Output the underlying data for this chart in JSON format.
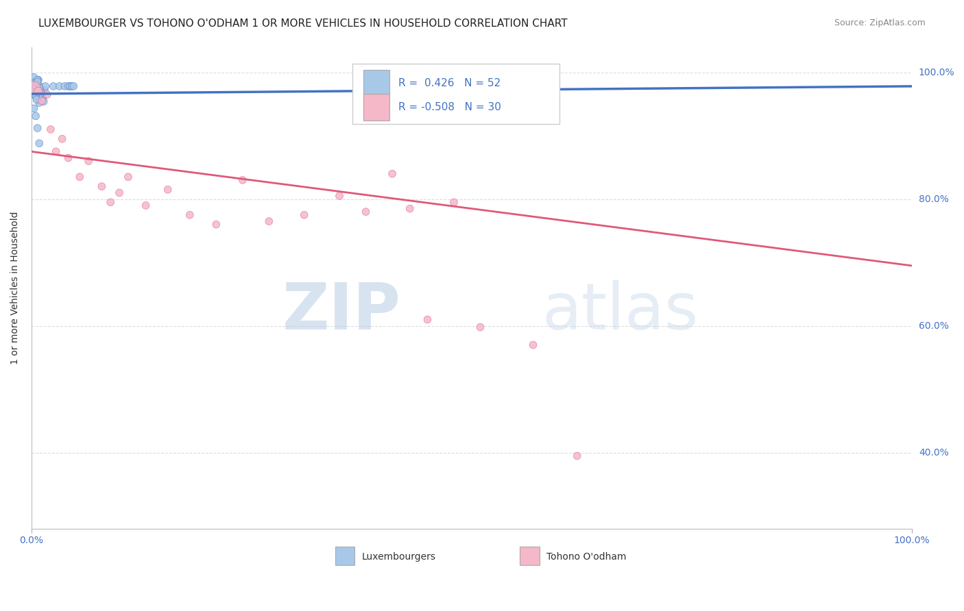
{
  "title": "LUXEMBOURGER VS TOHONO O'ODHAM 1 OR MORE VEHICLES IN HOUSEHOLD CORRELATION CHART",
  "source": "Source: ZipAtlas.com",
  "ylabel": "1 or more Vehicles in Household",
  "xlabel_lux": "Luxembourgers",
  "xlabel_toh": "Tohono O'odham",
  "xlim": [
    0.0,
    1.0
  ],
  "ylim": [
    0.28,
    1.04
  ],
  "yticks": [
    0.4,
    0.6,
    0.8,
    1.0
  ],
  "ytick_labels": [
    "40.0%",
    "60.0%",
    "80.0%",
    "100.0%"
  ],
  "lux_R": 0.426,
  "lux_N": 52,
  "toh_R": -0.508,
  "toh_N": 30,
  "lux_color": "#A8C8E8",
  "toh_color": "#F4B8C8",
  "lux_line_color": "#4472C4",
  "toh_line_color": "#E05878",
  "lux_scatter_x": [
    0.002,
    0.003,
    0.004,
    0.005,
    0.006,
    0.007,
    0.008,
    0.009,
    0.01,
    0.011,
    0.012,
    0.013,
    0.014,
    0.015,
    0.016,
    0.003,
    0.004,
    0.005,
    0.006,
    0.007,
    0.008,
    0.009,
    0.01,
    0.011,
    0.003,
    0.004,
    0.005,
    0.006,
    0.007,
    0.008,
    0.009,
    0.003,
    0.004,
    0.005,
    0.006,
    0.007,
    0.008,
    0.004,
    0.005,
    0.006,
    0.007,
    0.003,
    0.005,
    0.007,
    0.009,
    0.025,
    0.032,
    0.038,
    0.042,
    0.044,
    0.046,
    0.048
  ],
  "lux_scatter_y": [
    0.985,
    0.975,
    0.968,
    0.972,
    0.978,
    0.982,
    0.988,
    0.979,
    0.974,
    0.969,
    0.964,
    0.959,
    0.954,
    0.972,
    0.978,
    0.992,
    0.981,
    0.971,
    0.965,
    0.975,
    0.961,
    0.952,
    0.973,
    0.967,
    0.978,
    0.964,
    0.968,
    0.974,
    0.958,
    0.962,
    0.976,
    0.983,
    0.972,
    0.977,
    0.969,
    0.988,
    0.971,
    0.966,
    0.963,
    0.957,
    0.985,
    0.943,
    0.931,
    0.912,
    0.888,
    0.978,
    0.978,
    0.978,
    0.978,
    0.978,
    0.978,
    0.978
  ],
  "lux_scatter_size": [
    60,
    60,
    60,
    60,
    60,
    60,
    60,
    60,
    60,
    60,
    60,
    60,
    60,
    60,
    60,
    60,
    60,
    60,
    60,
    60,
    60,
    60,
    60,
    60,
    60,
    60,
    60,
    60,
    60,
    60,
    60,
    60,
    60,
    60,
    60,
    60,
    60,
    60,
    60,
    60,
    60,
    60,
    60,
    60,
    60,
    60,
    60,
    60,
    60,
    60,
    60,
    60
  ],
  "toh_scatter_x": [
    0.003,
    0.008,
    0.012,
    0.018,
    0.022,
    0.028,
    0.035,
    0.042,
    0.055,
    0.065,
    0.08,
    0.09,
    0.1,
    0.11,
    0.13,
    0.155,
    0.18,
    0.21,
    0.24,
    0.27,
    0.31,
    0.35,
    0.38,
    0.41,
    0.43,
    0.45,
    0.48,
    0.51,
    0.57,
    0.62
  ],
  "toh_scatter_y": [
    0.975,
    0.97,
    0.955,
    0.965,
    0.91,
    0.875,
    0.895,
    0.865,
    0.835,
    0.86,
    0.82,
    0.795,
    0.81,
    0.835,
    0.79,
    0.815,
    0.775,
    0.76,
    0.83,
    0.765,
    0.775,
    0.805,
    0.78,
    0.84,
    0.785,
    0.61,
    0.795,
    0.598,
    0.57,
    0.395
  ],
  "toh_scatter_size": [
    200,
    80,
    60,
    60,
    60,
    60,
    60,
    60,
    60,
    60,
    60,
    60,
    60,
    60,
    60,
    60,
    60,
    60,
    60,
    60,
    60,
    60,
    60,
    60,
    60,
    60,
    60,
    60,
    60,
    60
  ],
  "lux_trend_x0": 0.0,
  "lux_trend_y0": 0.966,
  "lux_trend_x1": 1.0,
  "lux_trend_y1": 0.978,
  "toh_trend_x0": 0.0,
  "toh_trend_y0": 0.875,
  "toh_trend_x1": 1.0,
  "toh_trend_y1": 0.695,
  "watermark_zip": "ZIP",
  "watermark_atlas": "atlas",
  "background_color": "#ffffff",
  "grid_color": "#dddddd",
  "axis_color": "#4472C4",
  "title_fontsize": 11,
  "source_fontsize": 9
}
